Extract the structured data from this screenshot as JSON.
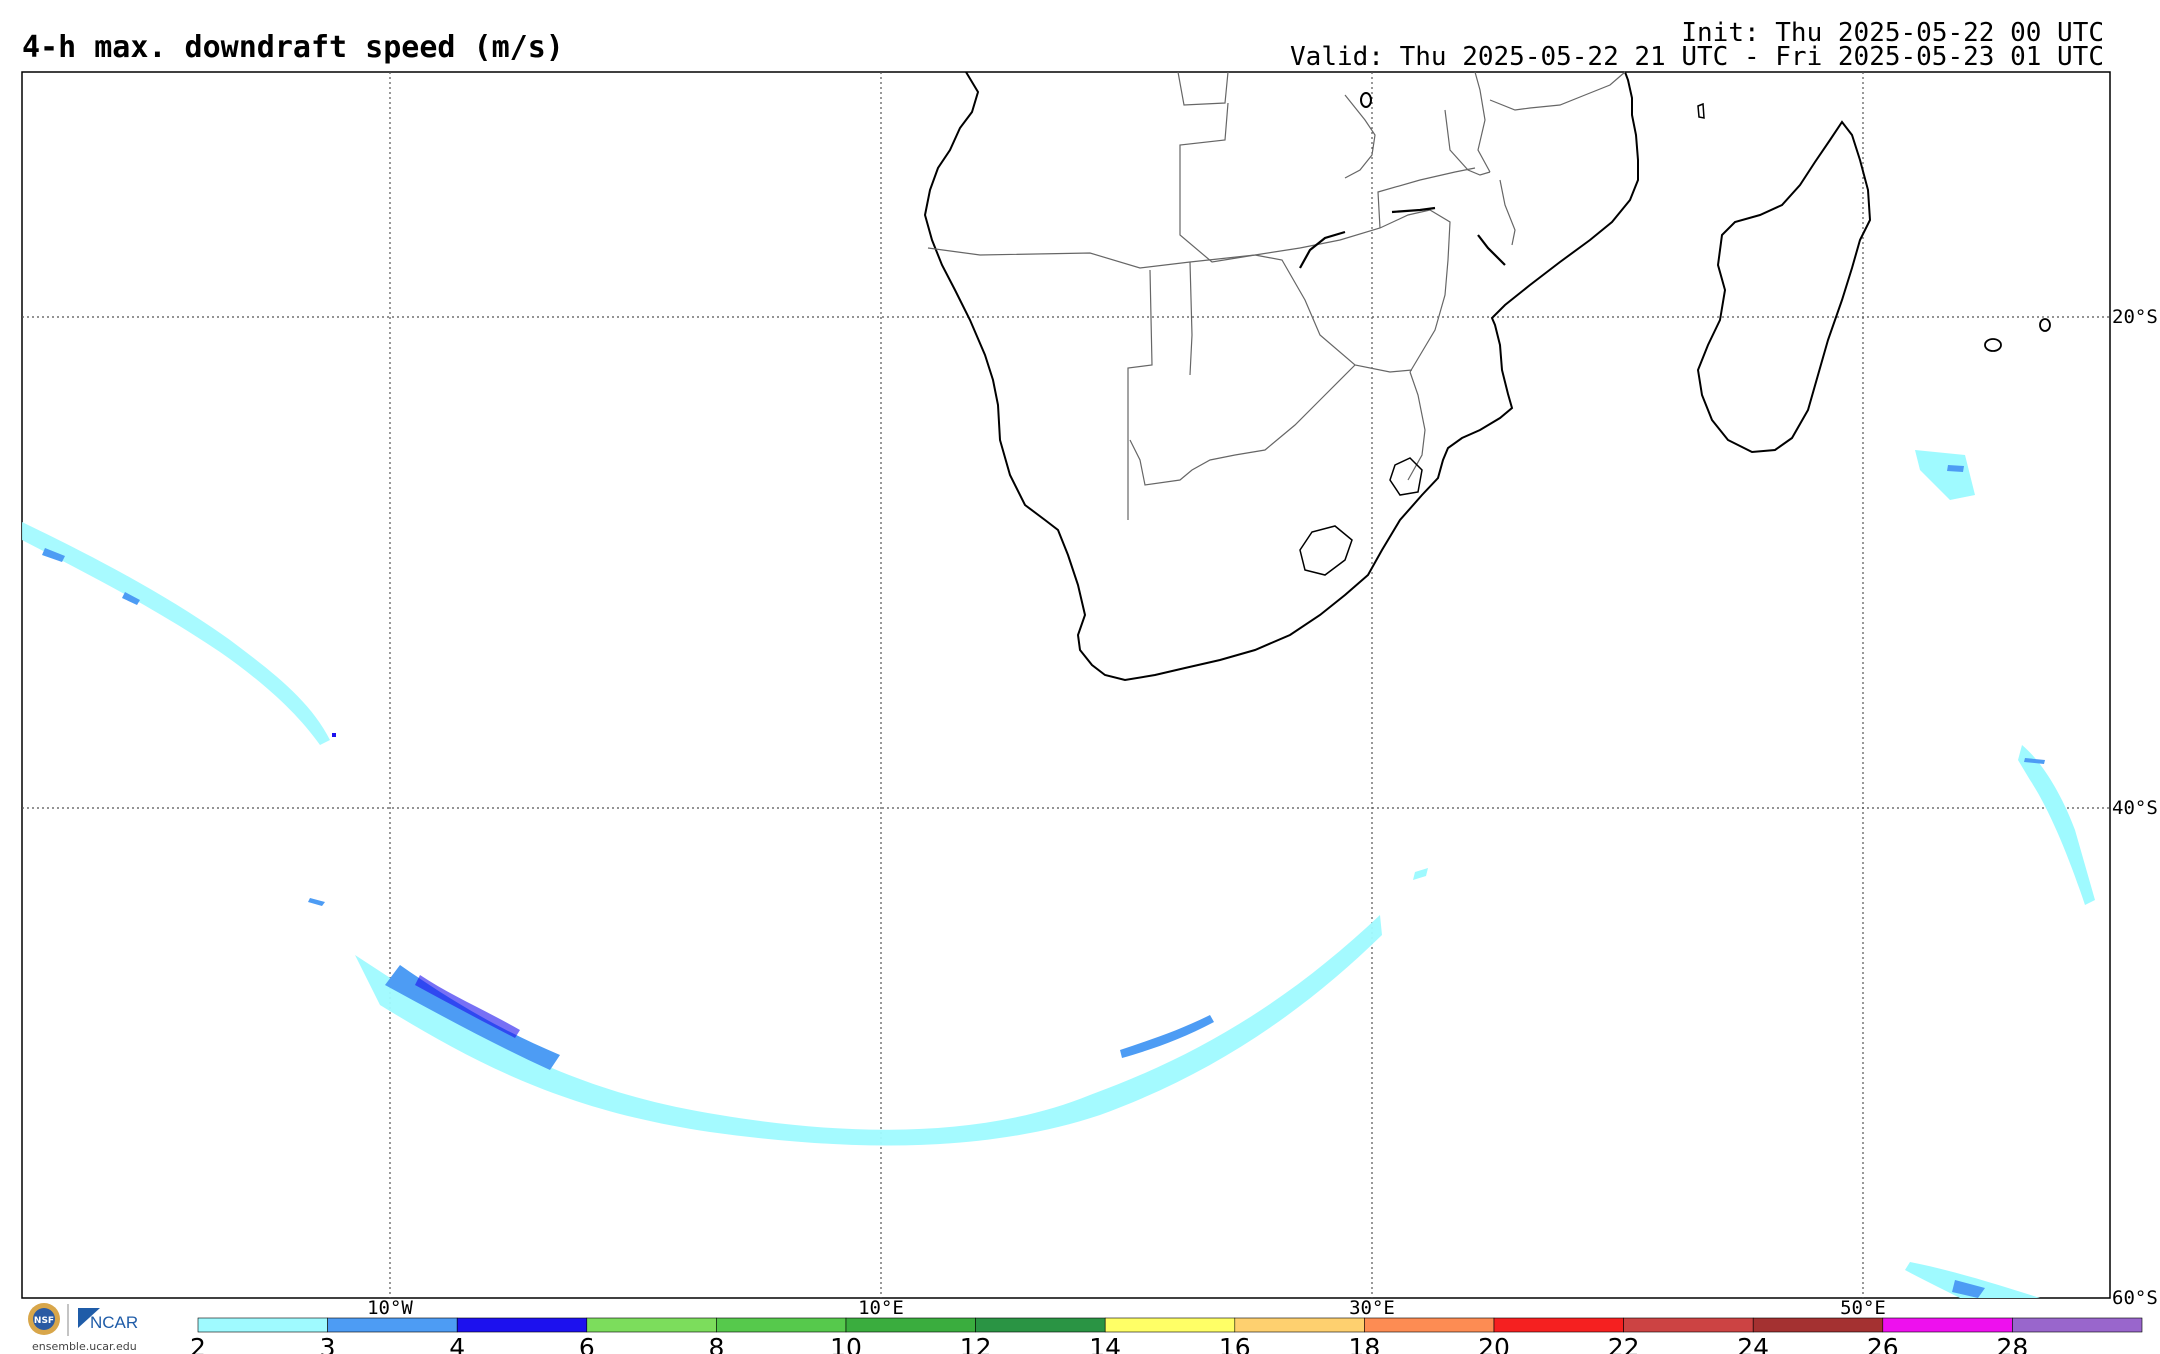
{
  "header": {
    "title": "4-h max. downdraft speed (m/s)",
    "init": "Init: Thu 2025-05-22 00 UTC",
    "valid": "Valid: Thu 2025-05-22 21 UTC - Fri 2025-05-23 01 UTC"
  },
  "map": {
    "lon_labels": [
      "10°W",
      "10°E",
      "30°E",
      "50°E"
    ],
    "lat_labels": [
      "20°S",
      "40°S",
      "60°S"
    ]
  },
  "colorbar": {
    "levels": [
      "2",
      "3",
      "4",
      "6",
      "8",
      "10",
      "12",
      "14",
      "16",
      "18",
      "20",
      "22",
      "24",
      "26",
      "28"
    ],
    "colors": [
      "#9ffaff",
      "#4d9cf4",
      "#1c11ee",
      "#7cdd5c",
      "#56c94c",
      "#3aad3e",
      "#2a9444",
      "#ffff66",
      "#fed06f",
      "#fd8c53",
      "#f52020",
      "#cc4343",
      "#a43131",
      "#ee10ee",
      "#9966cc"
    ]
  },
  "footer": {
    "logo_nsf": "NSF",
    "logo_ncar": "NCAR",
    "site": "ensemble.ucar.edu"
  }
}
